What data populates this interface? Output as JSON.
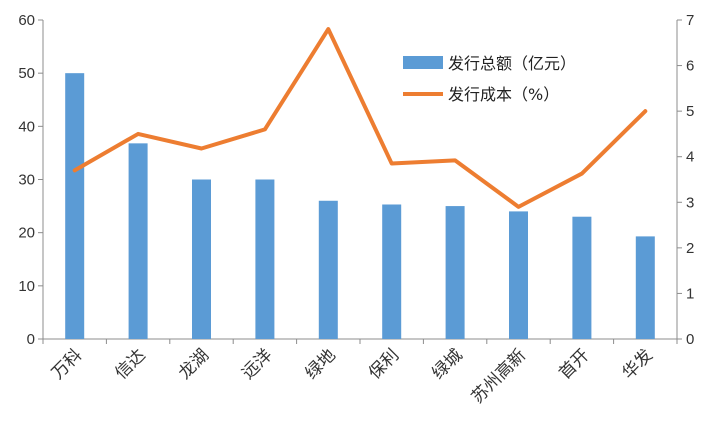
{
  "chart_data": {
    "type": "bar+line",
    "categories": [
      "万科",
      "信达",
      "龙湖",
      "远洋",
      "绿地",
      "保利",
      "绿城",
      "苏州高新",
      "首开",
      "华发"
    ],
    "series": [
      {
        "name": "发行总额（亿元）",
        "type": "bar",
        "axis": "left",
        "color": "#5b9bd5",
        "values": [
          50,
          36.8,
          30,
          30,
          26,
          25.3,
          25,
          24,
          23,
          19.3
        ]
      },
      {
        "name": "发行成本（%）",
        "type": "line",
        "axis": "right",
        "color": "#ed7d31",
        "values": [
          3.7,
          4.5,
          4.18,
          4.6,
          6.8,
          3.85,
          3.92,
          2.9,
          3.63,
          5.0
        ]
      }
    ],
    "ylim_left": [
      0,
      60
    ],
    "yticks_left": [
      "0",
      "10",
      "20",
      "30",
      "40",
      "50",
      "60"
    ],
    "ylim_right": [
      0,
      7
    ],
    "yticks_right": [
      "0",
      "1",
      "2",
      "3",
      "4",
      "5",
      "6",
      "7"
    ],
    "grid": false,
    "legend_position": "top-right"
  }
}
